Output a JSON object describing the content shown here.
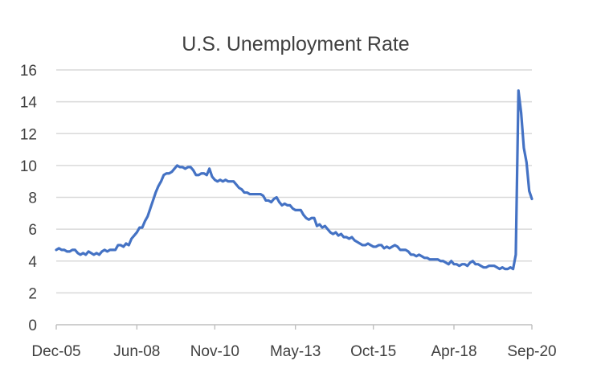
{
  "chart_data": {
    "type": "line",
    "title": "U.S. Unemployment Rate",
    "xlabel": "",
    "ylabel": "",
    "ylim": [
      0,
      16
    ],
    "yticks": [
      0,
      2,
      4,
      6,
      8,
      10,
      12,
      14,
      16
    ],
    "xticks": [
      "Dec-05",
      "Jun-08",
      "Nov-10",
      "May-13",
      "Oct-15",
      "Apr-18",
      "Sep-20"
    ],
    "grid": true,
    "legend": "none",
    "x_start": "Dec-05",
    "x_end": "Sep-20",
    "series": [
      {
        "color": "#4472c4",
        "values": [
          4.7,
          4.8,
          4.7,
          4.7,
          4.6,
          4.6,
          4.7,
          4.7,
          4.5,
          4.4,
          4.5,
          4.4,
          4.6,
          4.5,
          4.4,
          4.5,
          4.4,
          4.6,
          4.7,
          4.6,
          4.7,
          4.7,
          4.7,
          5.0,
          5.0,
          4.9,
          5.1,
          5.0,
          5.4,
          5.6,
          5.8,
          6.1,
          6.1,
          6.5,
          6.8,
          7.3,
          7.8,
          8.3,
          8.7,
          9.0,
          9.4,
          9.5,
          9.5,
          9.6,
          9.8,
          10.0,
          9.9,
          9.9,
          9.8,
          9.9,
          9.9,
          9.7,
          9.4,
          9.4,
          9.5,
          9.5,
          9.4,
          9.8,
          9.3,
          9.1,
          9.0,
          9.1,
          9.0,
          9.1,
          9.0,
          9.0,
          9.0,
          8.8,
          8.6,
          8.5,
          8.3,
          8.3,
          8.2,
          8.2,
          8.2,
          8.2,
          8.2,
          8.1,
          7.8,
          7.8,
          7.7,
          7.9,
          8.0,
          7.7,
          7.5,
          7.6,
          7.5,
          7.5,
          7.3,
          7.2,
          7.2,
          7.2,
          6.9,
          6.7,
          6.6,
          6.7,
          6.7,
          6.2,
          6.3,
          6.1,
          6.2,
          6.0,
          5.8,
          5.7,
          5.8,
          5.6,
          5.7,
          5.5,
          5.5,
          5.4,
          5.5,
          5.3,
          5.2,
          5.1,
          5.0,
          5.0,
          5.1,
          5.0,
          4.9,
          4.9,
          5.0,
          5.0,
          4.8,
          4.9,
          4.8,
          4.9,
          5.0,
          4.9,
          4.7,
          4.7,
          4.7,
          4.6,
          4.4,
          4.4,
          4.3,
          4.4,
          4.3,
          4.2,
          4.2,
          4.1,
          4.1,
          4.1,
          4.1,
          4.0,
          4.0,
          3.9,
          3.8,
          4.0,
          3.8,
          3.8,
          3.7,
          3.8,
          3.8,
          3.7,
          3.9,
          4.0,
          3.8,
          3.8,
          3.7,
          3.6,
          3.6,
          3.7,
          3.7,
          3.7,
          3.6,
          3.5,
          3.6,
          3.5,
          3.5,
          3.6,
          3.5,
          4.4,
          14.7,
          13.3,
          11.1,
          10.2,
          8.4,
          7.9
        ]
      }
    ]
  }
}
